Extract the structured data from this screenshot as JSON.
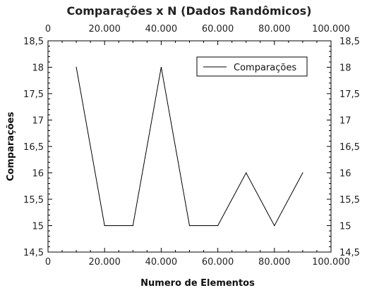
{
  "chart_data": {
    "type": "line",
    "title": "Comparações x N (Dados Randômicos)",
    "xlabel": "Numero de Elementos",
    "ylabel": "Comparações",
    "xlim": [
      0,
      100000
    ],
    "ylim": [
      14.5,
      18.5
    ],
    "x_ticks": [
      0,
      20000,
      40000,
      60000,
      80000,
      100000
    ],
    "x_tick_labels": [
      "0",
      "20.000",
      "40.000",
      "60.000",
      "80.000",
      "100.000"
    ],
    "y_ticks": [
      14.5,
      15,
      15.5,
      16,
      16.5,
      17,
      17.5,
      18,
      18.5
    ],
    "y_tick_labels": [
      "14,5",
      "15",
      "15,5",
      "16",
      "16,5",
      "17",
      "17,5",
      "18",
      "18,5"
    ],
    "grid": false,
    "legend_position": "top-right",
    "series": [
      {
        "name": "Comparações",
        "color": "#000000",
        "x": [
          10000,
          20000,
          30000,
          40000,
          50000,
          60000,
          70000,
          80000,
          90000
        ],
        "y": [
          18,
          15,
          15,
          18,
          15,
          15,
          16,
          15,
          16
        ]
      }
    ]
  }
}
